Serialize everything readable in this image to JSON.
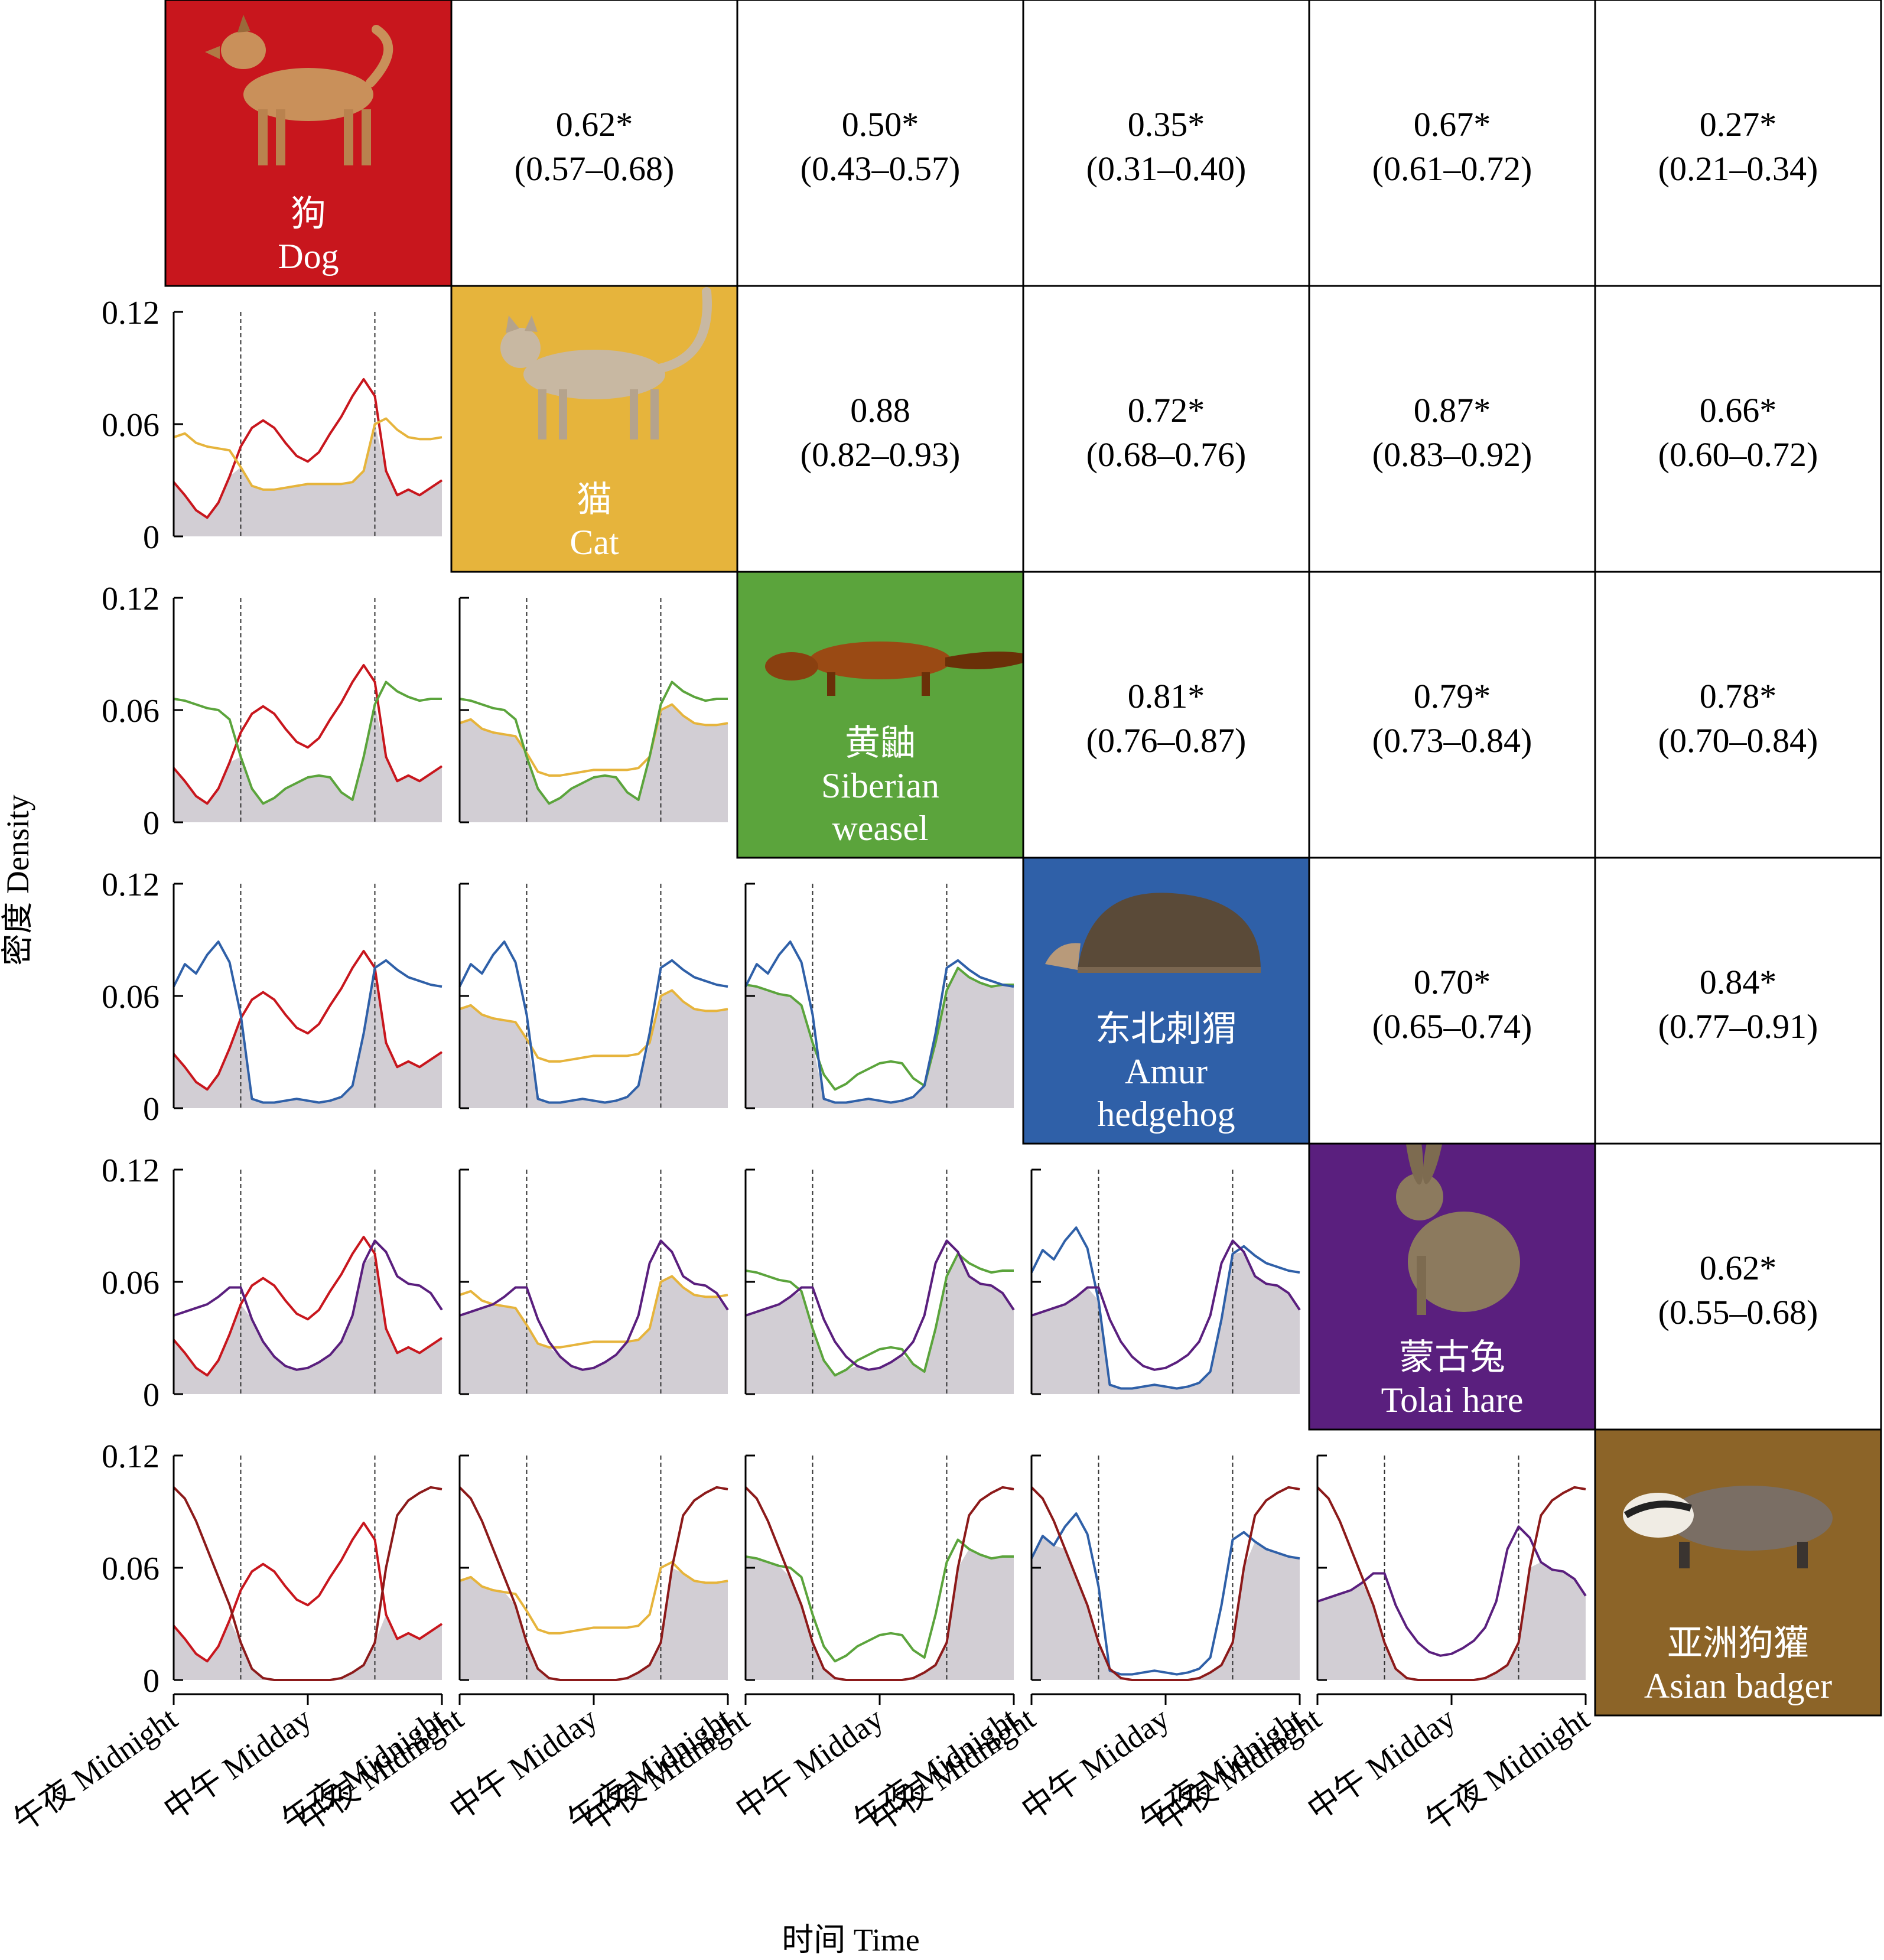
{
  "figure": {
    "ylabel": "密度 Density",
    "xlabel": "时间 Time",
    "x_tick_labels": [
      "午夜 Midnight",
      "中午 Midday",
      "午夜 Midnight"
    ],
    "y_tick_labels": [
      "0",
      "0.06",
      "0.12"
    ]
  },
  "species": [
    {
      "key": "dog",
      "cn": "狗",
      "en": [
        "Dog"
      ],
      "color": "#c8161d",
      "icon": "dog-illustration"
    },
    {
      "key": "cat",
      "cn": "猫",
      "en": [
        "Cat"
      ],
      "color": "#e6b43c",
      "icon": "cat-illustration"
    },
    {
      "key": "weasel",
      "cn": "黄鼬",
      "en": [
        "Siberian",
        "weasel"
      ],
      "color": "#5ba43c",
      "icon": "weasel-illustration"
    },
    {
      "key": "hedgehog",
      "cn": "东北刺猬",
      "en": [
        "Amur",
        "hedgehog"
      ],
      "color": "#2f60a8",
      "icon": "hedgehog-illustration"
    },
    {
      "key": "hare",
      "cn": "蒙古兔",
      "en": [
        "Tolai hare"
      ],
      "color": "#5a1f7e",
      "icon": "hare-illustration"
    },
    {
      "key": "badger",
      "cn": "亚洲狗獾",
      "en": [
        "Asian badger"
      ],
      "color": "#8c6428",
      "icon": "badger-illustration"
    }
  ],
  "overlap": [
    {
      "row": 0,
      "col": 1,
      "value": "0.62*",
      "ci": "(0.57–0.68)"
    },
    {
      "row": 0,
      "col": 2,
      "value": "0.50*",
      "ci": "(0.43–0.57)"
    },
    {
      "row": 0,
      "col": 3,
      "value": "0.35*",
      "ci": "(0.31–0.40)"
    },
    {
      "row": 0,
      "col": 4,
      "value": "0.67*",
      "ci": "(0.61–0.72)"
    },
    {
      "row": 0,
      "col": 5,
      "value": "0.27*",
      "ci": "(0.21–0.34)"
    },
    {
      "row": 1,
      "col": 2,
      "value": "0.88",
      "ci": "(0.82–0.93)"
    },
    {
      "row": 1,
      "col": 3,
      "value": "0.72*",
      "ci": "(0.68–0.76)"
    },
    {
      "row": 1,
      "col": 4,
      "value": "0.87*",
      "ci": "(0.83–0.92)"
    },
    {
      "row": 1,
      "col": 5,
      "value": "0.66*",
      "ci": "(0.60–0.72)"
    },
    {
      "row": 2,
      "col": 3,
      "value": "0.81*",
      "ci": "(0.76–0.87)"
    },
    {
      "row": 2,
      "col": 4,
      "value": "0.79*",
      "ci": "(0.73–0.84)"
    },
    {
      "row": 2,
      "col": 5,
      "value": "0.78*",
      "ci": "(0.70–0.84)"
    },
    {
      "row": 3,
      "col": 4,
      "value": "0.70*",
      "ci": "(0.65–0.74)"
    },
    {
      "row": 3,
      "col": 5,
      "value": "0.84*",
      "ci": "(0.77–0.91)"
    },
    {
      "row": 4,
      "col": 5,
      "value": "0.62*",
      "ci": "(0.55–0.68)"
    }
  ],
  "chart_data": {
    "type": "area",
    "subtype": "activity-overlap-matrix",
    "x_range_hours": [
      0,
      24
    ],
    "x_ticks": [
      0,
      12,
      24
    ],
    "y_range": [
      0,
      0.12
    ],
    "y_ticks": [
      0,
      0.06,
      0.12
    ],
    "reference_lines_hours": [
      6,
      18
    ],
    "overlap_shading": "#d2ced4",
    "x_hours": [
      0,
      1,
      2,
      3,
      4,
      5,
      6,
      7,
      8,
      9,
      10,
      11,
      12,
      13,
      14,
      15,
      16,
      17,
      18,
      19,
      20,
      21,
      22,
      23,
      24
    ],
    "density": {
      "dog": [
        0.029,
        0.022,
        0.014,
        0.01,
        0.018,
        0.032,
        0.048,
        0.058,
        0.062,
        0.058,
        0.05,
        0.043,
        0.04,
        0.045,
        0.055,
        0.064,
        0.075,
        0.084,
        0.075,
        0.035,
        0.022,
        0.025,
        0.022,
        0.026,
        0.03
      ],
      "cat": [
        0.053,
        0.055,
        0.05,
        0.048,
        0.047,
        0.046,
        0.037,
        0.027,
        0.025,
        0.025,
        0.026,
        0.027,
        0.028,
        0.028,
        0.028,
        0.028,
        0.029,
        0.035,
        0.06,
        0.063,
        0.057,
        0.053,
        0.052,
        0.052,
        0.053
      ],
      "weasel": [
        0.066,
        0.065,
        0.063,
        0.061,
        0.06,
        0.055,
        0.035,
        0.018,
        0.01,
        0.013,
        0.018,
        0.021,
        0.024,
        0.025,
        0.024,
        0.016,
        0.012,
        0.035,
        0.063,
        0.075,
        0.07,
        0.067,
        0.065,
        0.066,
        0.066
      ],
      "hedgehog": [
        0.065,
        0.077,
        0.072,
        0.082,
        0.089,
        0.078,
        0.05,
        0.005,
        0.003,
        0.003,
        0.004,
        0.005,
        0.004,
        0.003,
        0.004,
        0.006,
        0.012,
        0.04,
        0.075,
        0.079,
        0.074,
        0.07,
        0.068,
        0.066,
        0.065
      ],
      "hare": [
        0.042,
        0.044,
        0.046,
        0.048,
        0.052,
        0.057,
        0.057,
        0.04,
        0.028,
        0.02,
        0.015,
        0.013,
        0.014,
        0.017,
        0.021,
        0.028,
        0.042,
        0.07,
        0.082,
        0.076,
        0.063,
        0.059,
        0.058,
        0.054,
        0.045
      ],
      "badger": [
        0.103,
        0.097,
        0.085,
        0.07,
        0.055,
        0.04,
        0.02,
        0.006,
        0.001,
        0.0,
        0.0,
        0.0,
        0.0,
        0.0,
        0.0,
        0.001,
        0.004,
        0.008,
        0.02,
        0.06,
        0.088,
        0.096,
        0.1,
        0.103,
        0.102
      ]
    }
  }
}
